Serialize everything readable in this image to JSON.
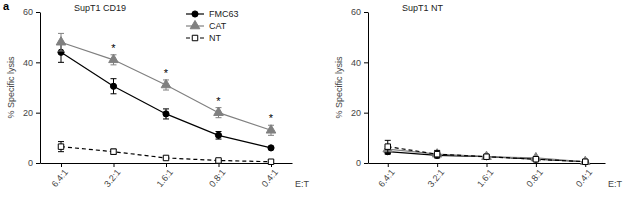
{
  "chart_data": [
    {
      "type": "line",
      "panel_label": "a",
      "title": "SupT1 CD19",
      "xlabel": "E:T",
      "ylabel": "% Specific lysis",
      "categories": [
        "6.4:1",
        "3.2:1",
        "1.6:1",
        "0.8:1",
        "0.4:1"
      ],
      "ylim": [
        0,
        60
      ],
      "yticks": [
        0,
        20,
        40,
        60
      ],
      "legend": "top-right",
      "annotations": [
        null,
        "*",
        "*",
        "*",
        "*"
      ],
      "series": [
        {
          "name": "FMC63",
          "color": "#000000",
          "marker": "circle",
          "line_style": "solid",
          "values": [
            44,
            30.5,
            19.5,
            11,
            6
          ],
          "errors": [
            4,
            3,
            2,
            1.5,
            0.5
          ]
        },
        {
          "name": "CAT",
          "color": "#808080",
          "marker": "triangle",
          "line_style": "solid",
          "values": [
            48,
            41,
            31,
            20,
            13
          ],
          "errors": [
            3.5,
            2,
            2,
            2,
            2
          ]
        },
        {
          "name": "NT",
          "color": "#000000",
          "marker": "square-open",
          "line_style": "dashed",
          "values": [
            6.5,
            4.5,
            2,
            1,
            0.5
          ],
          "errors": [
            2,
            1,
            0.5,
            0.3,
            0.3
          ]
        }
      ]
    },
    {
      "type": "line",
      "title": "SupT1 NT",
      "xlabel": "E:T",
      "ylabel": "% Specific lysis",
      "categories": [
        "6.4:1",
        "3.2:1",
        "1.6:1",
        "0.8:1",
        "0.4:1"
      ],
      "ylim": [
        0,
        60
      ],
      "yticks": [
        0,
        20,
        40,
        60
      ],
      "series": [
        {
          "name": "FMC63",
          "color": "#000000",
          "marker": "circle",
          "line_style": "solid",
          "values": [
            4.5,
            3,
            2.5,
            1.5,
            0.5
          ],
          "errors": [
            1,
            0.5,
            0.3,
            0.3,
            0.2
          ]
        },
        {
          "name": "CAT",
          "color": "#808080",
          "marker": "triangle",
          "line_style": "solid",
          "values": [
            5.5,
            3.5,
            2.5,
            2,
            0.5
          ],
          "errors": [
            1,
            0.5,
            0.3,
            0.3,
            0.2
          ]
        },
        {
          "name": "NT",
          "color": "#000000",
          "marker": "square-open",
          "line_style": "dashed",
          "values": [
            6.5,
            3.5,
            2.5,
            1.5,
            0.5
          ],
          "errors": [
            2.5,
            1.5,
            0.5,
            0.3,
            0.2
          ]
        }
      ]
    }
  ]
}
